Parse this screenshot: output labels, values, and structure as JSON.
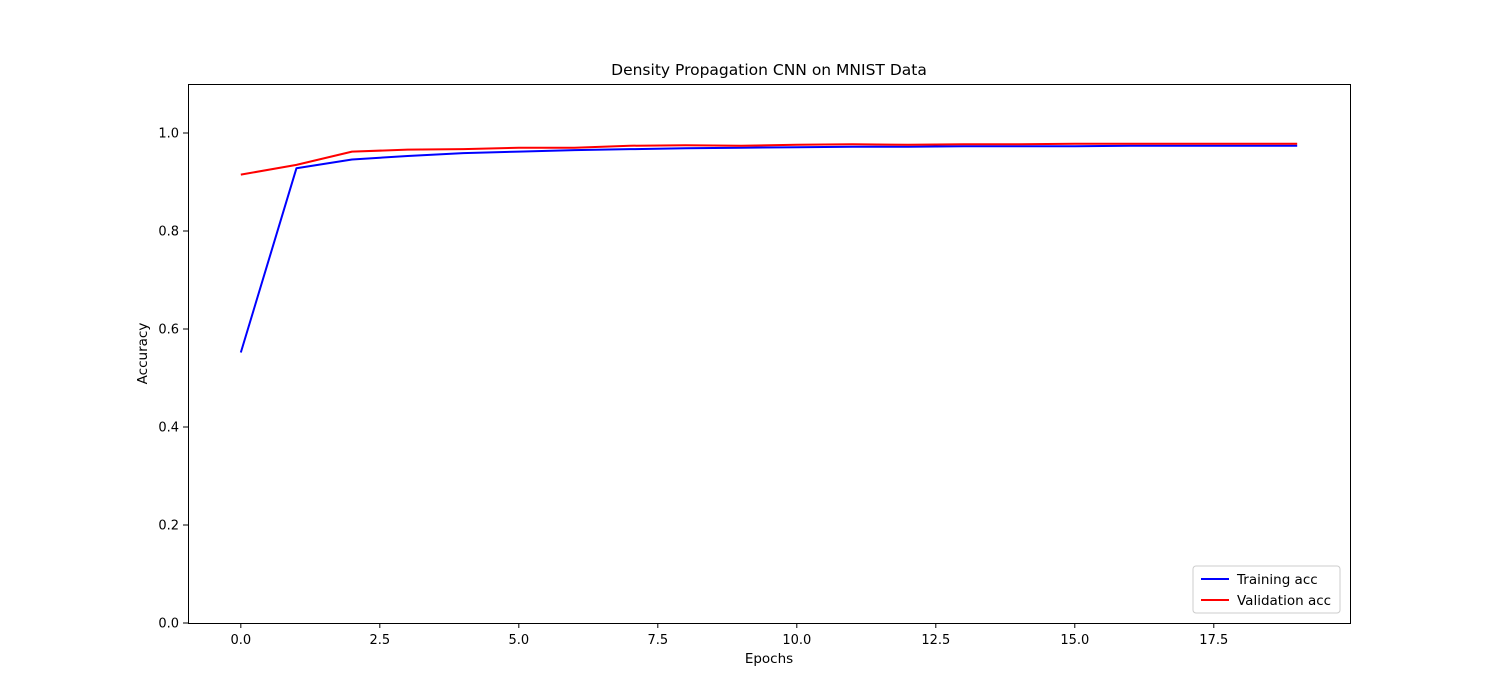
{
  "chart_data": {
    "type": "line",
    "title": "Density Propagation CNN on MNIST Data",
    "xlabel": "Epochs",
    "ylabel": "Accuracy",
    "xlim": [
      -0.95,
      19.95
    ],
    "ylim": [
      0.0,
      1.1
    ],
    "xticks": [
      0.0,
      2.5,
      5.0,
      7.5,
      10.0,
      12.5,
      15.0,
      17.5
    ],
    "xtick_labels": [
      "0.0",
      "2.5",
      "5.0",
      "7.5",
      "10.0",
      "12.5",
      "15.0",
      "17.5"
    ],
    "yticks": [
      0.0,
      0.2,
      0.4,
      0.6,
      0.8,
      1.0
    ],
    "ytick_labels": [
      "0.0",
      "0.2",
      "0.4",
      "0.6",
      "0.8",
      "1.0"
    ],
    "grid": false,
    "legend_position": "bottom-right",
    "x": [
      0,
      1,
      2,
      3,
      4,
      5,
      6,
      7,
      8,
      9,
      10,
      11,
      12,
      13,
      14,
      15,
      16,
      17,
      18,
      19
    ],
    "series": [
      {
        "name": "Training acc",
        "color": "#0000ff",
        "values": [
          0.552,
          0.928,
          0.946,
          0.953,
          0.959,
          0.962,
          0.965,
          0.967,
          0.969,
          0.97,
          0.971,
          0.972,
          0.972,
          0.973,
          0.973,
          0.973,
          0.974,
          0.974,
          0.974,
          0.974
        ]
      },
      {
        "name": "Validation acc",
        "color": "#ff0000",
        "values": [
          0.915,
          0.935,
          0.962,
          0.966,
          0.967,
          0.97,
          0.97,
          0.974,
          0.975,
          0.974,
          0.976,
          0.977,
          0.976,
          0.977,
          0.977,
          0.978,
          0.978,
          0.978,
          0.978,
          0.978
        ]
      }
    ]
  }
}
